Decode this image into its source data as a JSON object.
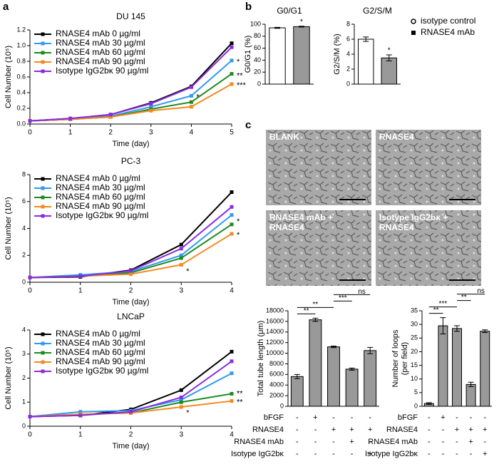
{
  "panels": [
    "a",
    "b",
    "c"
  ],
  "micrographs": {
    "labels": [
      [
        "BLANK"
      ],
      [
        "RNASE4"
      ],
      [
        "RNASE4 mAb +",
        "RNASE4"
      ],
      [
        "Isotype IgG2bκ +",
        "RNASE4"
      ]
    ]
  },
  "conditions": [
    {
      "label": "bFGF",
      "marks": [
        "-",
        "+",
        "-",
        "-",
        "-"
      ]
    },
    {
      "label": "RNASE4",
      "marks": [
        "-",
        "-",
        "+",
        "+",
        "+"
      ]
    },
    {
      "label": "RNASE4 mAb",
      "marks": [
        "-",
        "-",
        "-",
        "+",
        "-"
      ]
    },
    {
      "label": "Isotype IgG2bκ",
      "marks": [
        "-",
        "-",
        "-",
        "-",
        "+"
      ]
    }
  ],
  "chart_data": [
    {
      "type": "line",
      "title": "DU 145",
      "xlabel": "Time (day)",
      "ylabel": "Cell Number (10⁵)",
      "x": [
        0,
        1,
        2,
        3,
        4,
        5
      ],
      "xlim": [
        0,
        5
      ],
      "xticks": [
        0,
        1,
        2,
        3,
        4,
        5
      ],
      "ylim": [
        0,
        1.2
      ],
      "yticks": [
        {
          "value": 0,
          "label": "0.0"
        },
        0.2,
        0.4,
        0.6,
        0.8,
        {
          "value": 1,
          "label": "1.0"
        },
        1.2
      ],
      "series": [
        {
          "name": "RNASE4 mAb 0 µg/ml",
          "color": "#000000",
          "values": [
            0.04,
            0.07,
            0.12,
            0.27,
            0.48,
            1.03
          ]
        },
        {
          "name": "RNASE4 mAb 30 µg/ml",
          "color": "#2f9bef",
          "values": [
            0.04,
            0.06,
            0.1,
            0.22,
            0.36,
            0.81
          ]
        },
        {
          "name": "RNASE4 mAb 60 µg/ml",
          "color": "#1e8a1e",
          "values": [
            0.04,
            0.06,
            0.09,
            0.19,
            0.28,
            0.64
          ]
        },
        {
          "name": "RNASE4 mAb 90 µg/ml",
          "color": "#f5891f",
          "values": [
            0.04,
            0.06,
            0.09,
            0.17,
            0.22,
            0.51
          ]
        },
        {
          "name": "Isotype IgG2bκ 90 µg/ml",
          "color": "#8a2be2",
          "values": [
            0.04,
            0.07,
            0.12,
            0.26,
            0.47,
            0.98
          ]
        }
      ],
      "annotations": [
        {
          "text": "*",
          "x": 5,
          "y": 0.81
        },
        {
          "text": "*",
          "x": 4,
          "y": 0.36
        },
        {
          "text": "**",
          "x": 5,
          "y": 0.63
        },
        {
          "text": "***",
          "x": 5,
          "y": 0.51
        }
      ]
    },
    {
      "type": "line",
      "title": "PC-3",
      "xlabel": "Time (day)",
      "ylabel": "Cell Number (10⁵)",
      "x": [
        0,
        1,
        2,
        3,
        4
      ],
      "xlim": [
        0,
        4
      ],
      "xticks": [
        0,
        1,
        2,
        3,
        4
      ],
      "ylim": [
        0,
        8
      ],
      "yticks": [
        0,
        2,
        4,
        6,
        8
      ],
      "series": [
        {
          "name": "RNASE4 mAb 0 µg/ml",
          "color": "#000000",
          "values": [
            0.35,
            0.4,
            0.9,
            2.8,
            6.7
          ]
        },
        {
          "name": "RNASE4 mAb 30 µg/ml",
          "color": "#2f9bef",
          "values": [
            0.35,
            0.55,
            0.8,
            2.0,
            5.0
          ]
        },
        {
          "name": "RNASE4 mAb 60 µg/ml",
          "color": "#1e8a1e",
          "values": [
            0.35,
            0.45,
            0.7,
            1.8,
            4.3
          ]
        },
        {
          "name": "RNASE4 mAb 90 µg/ml",
          "color": "#f5891f",
          "values": [
            0.35,
            0.45,
            0.6,
            1.3,
            3.6
          ]
        },
        {
          "name": "Isotype IgG2bκ 90 µg/ml",
          "color": "#8a2be2",
          "values": [
            0.35,
            0.45,
            0.85,
            2.5,
            5.6
          ]
        }
      ],
      "annotations": [
        {
          "text": "*",
          "x": 4,
          "y": 4.6
        },
        {
          "text": "*",
          "x": 4,
          "y": 3.6
        },
        {
          "text": "*",
          "x": 3,
          "y": 0.9
        }
      ]
    },
    {
      "type": "line",
      "title": "LNCaP",
      "xlabel": "Time (day)",
      "ylabel": "Cell Number (10⁵)",
      "x": [
        0,
        1,
        2,
        3,
        4
      ],
      "xlim": [
        0,
        4
      ],
      "xticks": [
        0,
        1,
        2,
        3,
        4
      ],
      "ylim": [
        0,
        4
      ],
      "yticks": [
        0,
        1,
        2,
        3,
        4
      ],
      "series": [
        {
          "name": "RNASE4 mAb 0 µg/ml",
          "color": "#000000",
          "values": [
            0.4,
            0.45,
            0.7,
            1.5,
            3.1
          ]
        },
        {
          "name": "RNASE4 mAb 30 µg/ml",
          "color": "#2f9bef",
          "values": [
            0.4,
            0.6,
            0.65,
            1.1,
            2.2
          ]
        },
        {
          "name": "RNASE4 mAb 60 µg/ml",
          "color": "#1e8a1e",
          "values": [
            0.4,
            0.5,
            0.55,
            1.0,
            1.35
          ]
        },
        {
          "name": "RNASE4 mAb 90 µg/ml",
          "color": "#f5891f",
          "values": [
            0.4,
            0.5,
            0.55,
            0.8,
            1.05
          ]
        },
        {
          "name": "Isotype IgG2bκ 90 µg/ml",
          "color": "#8a2be2",
          "values": [
            0.4,
            0.45,
            0.6,
            1.2,
            2.7
          ]
        }
      ],
      "annotations": [
        {
          "text": "**",
          "x": 4,
          "y": 1.4
        },
        {
          "text": "**",
          "x": 4,
          "y": 1.05
        },
        {
          "text": "*",
          "x": 3,
          "y": 0.6
        }
      ]
    },
    {
      "type": "bar",
      "title": "G0/G1",
      "ylabel": "G0/G1 (%)",
      "categories": [
        "isotype control",
        "RNASE4 mAb"
      ],
      "values": [
        94,
        96
      ],
      "errors": [
        0.8,
        0.8
      ],
      "colors": [
        "#ffffff",
        "#999999"
      ],
      "ylim": [
        0,
        100
      ],
      "yticks": [
        0,
        20,
        40,
        60,
        80,
        100
      ],
      "annotations": [
        {
          "text": "*",
          "index": 1
        }
      ]
    },
    {
      "type": "bar",
      "title": "G2/S/M",
      "ylabel": "G2/S/M (%)",
      "values": [
        6.0,
        3.5
      ],
      "errors": [
        0.3,
        0.4
      ],
      "colors": [
        "#ffffff",
        "#999999"
      ],
      "ylim": [
        0,
        8
      ],
      "yticks": [
        0,
        2,
        4,
        6,
        8
      ],
      "annotations": [
        {
          "text": "*",
          "index": 1
        }
      ]
    },
    {
      "type": "bar",
      "ylabel": "Total tube length (μm)",
      "values": [
        5600,
        16300,
        11200,
        7000,
        10500
      ],
      "errors": [
        400,
        300,
        150,
        200,
        600
      ],
      "colors": [
        "#999999",
        "#999999",
        "#999999",
        "#999999",
        "#999999"
      ],
      "ylim": [
        0,
        18000
      ],
      "yticks": [
        0,
        2000,
        4000,
        6000,
        8000,
        10000,
        12000,
        14000,
        16000,
        18000
      ],
      "brackets": [
        {
          "text": "**",
          "from": 0,
          "to": 1
        },
        {
          "text": "**",
          "from": 0,
          "to": 2
        },
        {
          "text": "***",
          "from": 2,
          "to": 3
        },
        {
          "text": "ns",
          "from": 2,
          "to": 4
        }
      ]
    },
    {
      "type": "bar",
      "ylabel": [
        "Number of loops",
        "(per field)"
      ],
      "values": [
        1,
        29.5,
        28.5,
        8,
        27.5
      ],
      "errors": [
        0.3,
        3,
        1,
        0.8,
        0.5
      ],
      "colors": [
        "#999999",
        "#999999",
        "#999999",
        "#999999",
        "#999999"
      ],
      "ylim": [
        0,
        35
      ],
      "yticks": [
        0,
        5,
        10,
        15,
        20,
        25,
        30,
        35
      ],
      "brackets": [
        {
          "text": "**",
          "from": 0,
          "to": 1
        },
        {
          "text": "***",
          "from": 0,
          "to": 2
        },
        {
          "text": "**",
          "from": 2,
          "to": 3
        },
        {
          "text": "ns",
          "from": 2,
          "to": 4
        }
      ]
    }
  ]
}
